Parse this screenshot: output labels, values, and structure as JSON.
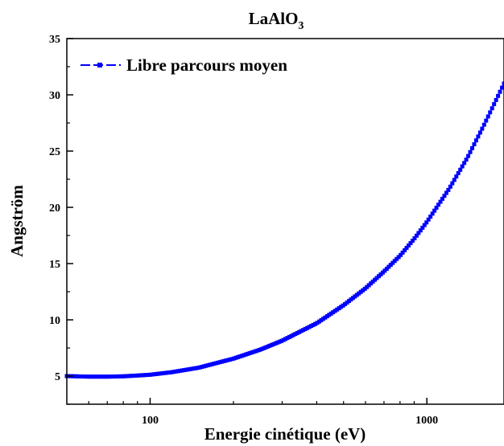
{
  "chart_data": {
    "type": "line",
    "title": "LaAlO",
    "title_subscript": "3",
    "xlabel": "Energie cinétique (eV)",
    "ylabel": "Angström",
    "x_scale": "log",
    "xlim": [
      50,
      1900
    ],
    "ylim": [
      2.5,
      35
    ],
    "x_ticks": [
      100,
      1000
    ],
    "y_ticks": [
      5,
      10,
      15,
      20,
      25,
      30,
      35
    ],
    "grid": false,
    "legend_position": "top-left",
    "series": [
      {
        "name": "Libre parcours moyen",
        "color": "#0000ff",
        "marker": "square",
        "x": [
          50,
          60,
          70,
          80,
          90,
          100,
          120,
          150,
          200,
          250,
          300,
          400,
          500,
          600,
          700,
          800,
          900,
          1000,
          1200,
          1400,
          1600,
          1900
        ],
        "y": [
          5.0,
          4.95,
          4.95,
          4.98,
          5.05,
          5.12,
          5.35,
          5.75,
          6.55,
          7.35,
          8.15,
          9.7,
          11.3,
          12.8,
          14.3,
          15.7,
          17.2,
          18.7,
          21.6,
          24.4,
          27.2,
          31.0
        ]
      }
    ]
  }
}
